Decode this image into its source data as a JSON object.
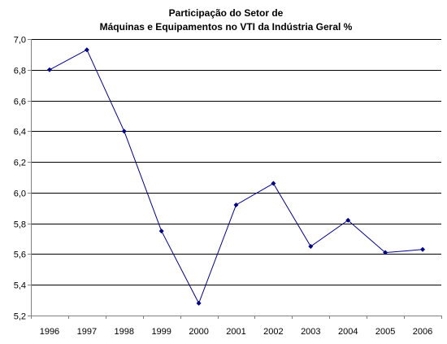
{
  "chart_data": {
    "type": "line",
    "title": "Participação do Setor de",
    "subtitle": "Máquinas e Equipamentos no VTI da Indústria Geral %",
    "xlabel": "",
    "ylabel": "",
    "categories": [
      "1996",
      "1997",
      "1998",
      "1999",
      "2000",
      "2001",
      "2002",
      "2003",
      "2004",
      "2005",
      "2006"
    ],
    "series": [
      {
        "values": [
          6.8,
          6.93,
          6.4,
          5.75,
          5.28,
          5.92,
          6.06,
          5.65,
          5.82,
          5.61,
          5.63
        ]
      }
    ],
    "ylim": [
      5.2,
      7.0
    ],
    "yticks": [
      "5,2",
      "5,4",
      "5,6",
      "5,8",
      "6,0",
      "6,2",
      "6,4",
      "6,6",
      "6,8",
      "7,0"
    ],
    "grid": true,
    "legend": "none",
    "colors": {
      "series": "#000080",
      "grid": "#000000",
      "axis": "#808080"
    }
  }
}
